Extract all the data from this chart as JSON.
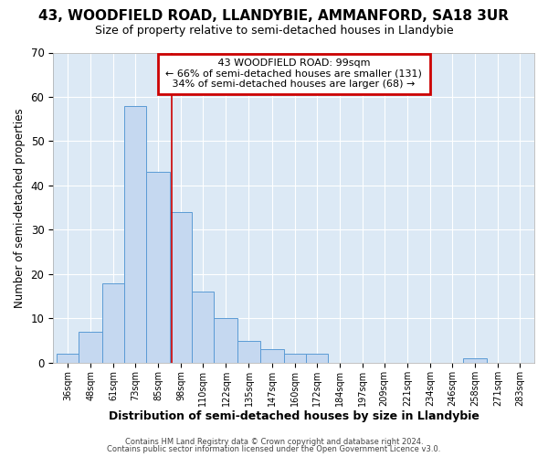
{
  "title": "43, WOODFIELD ROAD, LLANDYBIE, AMMANFORD, SA18 3UR",
  "subtitle": "Size of property relative to semi-detached houses in Llandybie",
  "xlabel": "Distribution of semi-detached houses by size in Llandybie",
  "ylabel": "Number of semi-detached properties",
  "footer1": "Contains HM Land Registry data © Crown copyright and database right 2024.",
  "footer2": "Contains public sector information licensed under the Open Government Licence v3.0.",
  "annotation_line1": "43 WOODFIELD ROAD: 99sqm",
  "annotation_line2": "← 66% of semi-detached houses are smaller (131)",
  "annotation_line3": "34% of semi-detached houses are larger (68) →",
  "bar_left_edges": [
    36,
    48,
    61,
    73,
    85,
    98,
    110,
    122,
    135,
    147,
    160,
    172,
    184,
    197,
    209,
    221,
    234,
    246,
    258,
    271,
    283
  ],
  "bar_widths": [
    12,
    13,
    12,
    12,
    13,
    12,
    12,
    13,
    12,
    13,
    12,
    12,
    13,
    12,
    12,
    13,
    12,
    12,
    13,
    12,
    12
  ],
  "bar_heights": [
    2,
    7,
    18,
    58,
    43,
    34,
    16,
    10,
    5,
    3,
    2,
    2,
    0,
    0,
    0,
    0,
    0,
    0,
    1,
    0,
    0
  ],
  "bar_color": "#c5d8f0",
  "bar_edge_color": "#5b9bd5",
  "vline_x": 99,
  "vline_color": "#cc0000",
  "ylim": [
    0,
    70
  ],
  "yticks": [
    0,
    10,
    20,
    30,
    40,
    50,
    60,
    70
  ],
  "background_color": "#ffffff",
  "plot_background": "#dce9f5",
  "annotation_box_color": "#cc0000",
  "grid_color": "#ffffff",
  "title_fontsize": 11,
  "subtitle_fontsize": 9
}
